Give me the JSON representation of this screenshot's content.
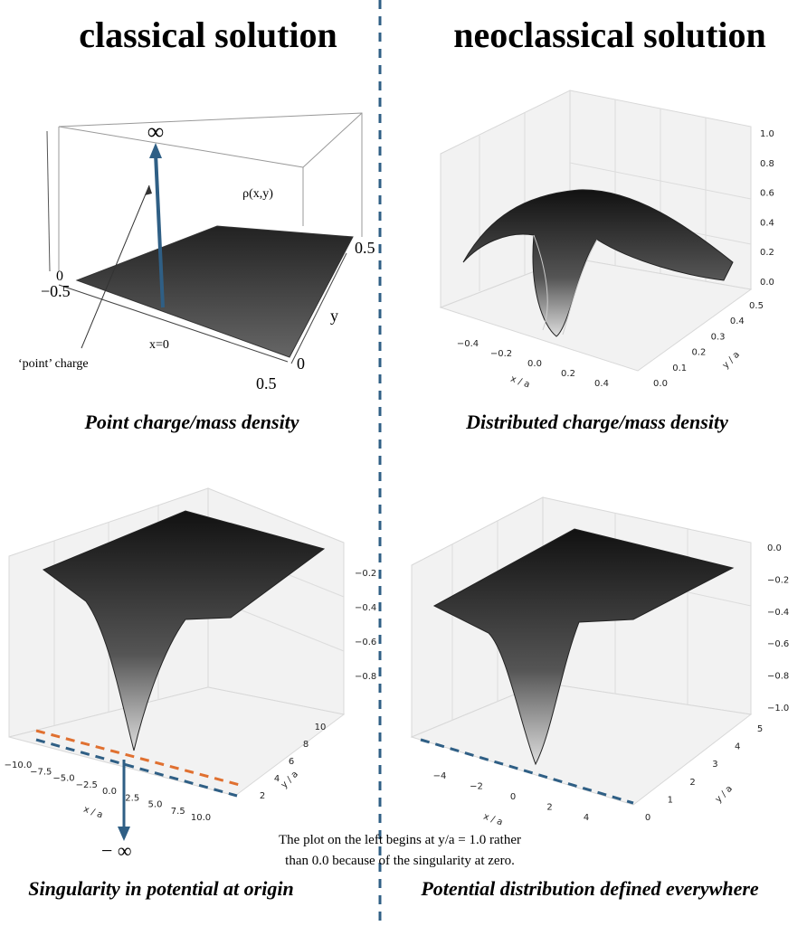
{
  "header": {
    "left": "classical solution",
    "right": "neoclassical solution"
  },
  "panels": [
    {
      "caption": "Point charge/mass density",
      "labels": {
        "infinity": "∞",
        "density": "ρ(x,y)",
        "z_zero": "0",
        "x_min": "−0.5",
        "y_max": "0.5",
        "y_label": "y",
        "y_zero": "0",
        "x_max": "0.5",
        "x_zero": "x=0",
        "point_charge": "‘point’ charge"
      }
    },
    {
      "caption": "Distributed charge/mass density",
      "x_label": "x / a",
      "y_label": "y / a",
      "xticks": [
        "−0.4",
        "−0.2",
        "0.0",
        "0.2",
        "0.4"
      ],
      "yticks": [
        "0.0",
        "0.1",
        "0.2",
        "0.3",
        "0.4",
        "0.5"
      ],
      "zticks": [
        "0.0",
        "0.2",
        "0.4",
        "0.6",
        "0.8",
        "1.0"
      ]
    },
    {
      "caption": "Singularity in potential at origin",
      "x_label": "x / a",
      "y_label": "y / a",
      "xticks": [
        "−10.0",
        "−7.5",
        "−5.0",
        "−2.5",
        "0.0",
        "2.5",
        "5.0",
        "7.5",
        "10.0"
      ],
      "yticks": [
        "2",
        "4",
        "6",
        "8",
        "10"
      ],
      "zticks": [
        "−0.2",
        "−0.4",
        "−0.6",
        "−0.8"
      ],
      "minus_infinity": "− ∞"
    },
    {
      "caption": "Potential distribution defined everywhere",
      "x_label": "x / a",
      "y_label": "y / a",
      "xticks": [
        "−4",
        "−2",
        "0",
        "2",
        "4"
      ],
      "yticks": [
        "0",
        "1",
        "2",
        "3",
        "4",
        "5"
      ],
      "zticks": [
        "0.0",
        "−0.2",
        "−0.4",
        "−0.6",
        "−0.8",
        "−1.0"
      ]
    }
  ],
  "note": [
    "The plot on the left begins at y/a = 1.0 rather",
    "than 0.0 because of the singularity at zero."
  ]
}
